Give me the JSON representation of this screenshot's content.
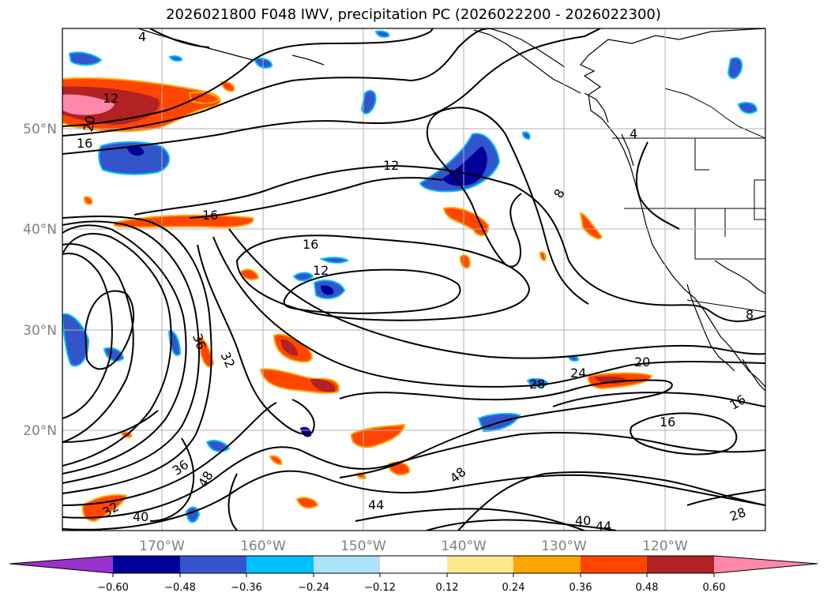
{
  "title": "2026021800 F048 IWV, precipitation PC (2026022200 - 2026022300)",
  "lat_labels": [
    "50°N",
    "40°N",
    "30°N",
    "20°N"
  ],
  "lon_labels": [
    "170°W",
    "160°W",
    "150°W",
    "140°W",
    "130°W",
    "120°W"
  ],
  "contour_labels": [
    "4",
    "12",
    "20",
    "16",
    "12",
    "16",
    "16",
    "12",
    "8",
    "4",
    "36",
    "32",
    "28",
    "24",
    "20",
    "16",
    "36",
    "48",
    "40",
    "32",
    "44",
    "48",
    "40",
    "44",
    "28",
    "8"
  ],
  "colorbar": {
    "ticks": [
      "−0.60",
      "−0.48",
      "−0.36",
      "−0.24",
      "−0.12",
      "0.12",
      "0.24",
      "0.36",
      "0.48",
      "0.60"
    ],
    "colors": [
      "#9932cc",
      "#000099",
      "#3355cc",
      "#00bfff",
      "#aee2f8",
      "#ffffff",
      "#fce98c",
      "#ffa500",
      "#ff4500",
      "#b22222",
      "#ff88aa"
    ]
  }
}
